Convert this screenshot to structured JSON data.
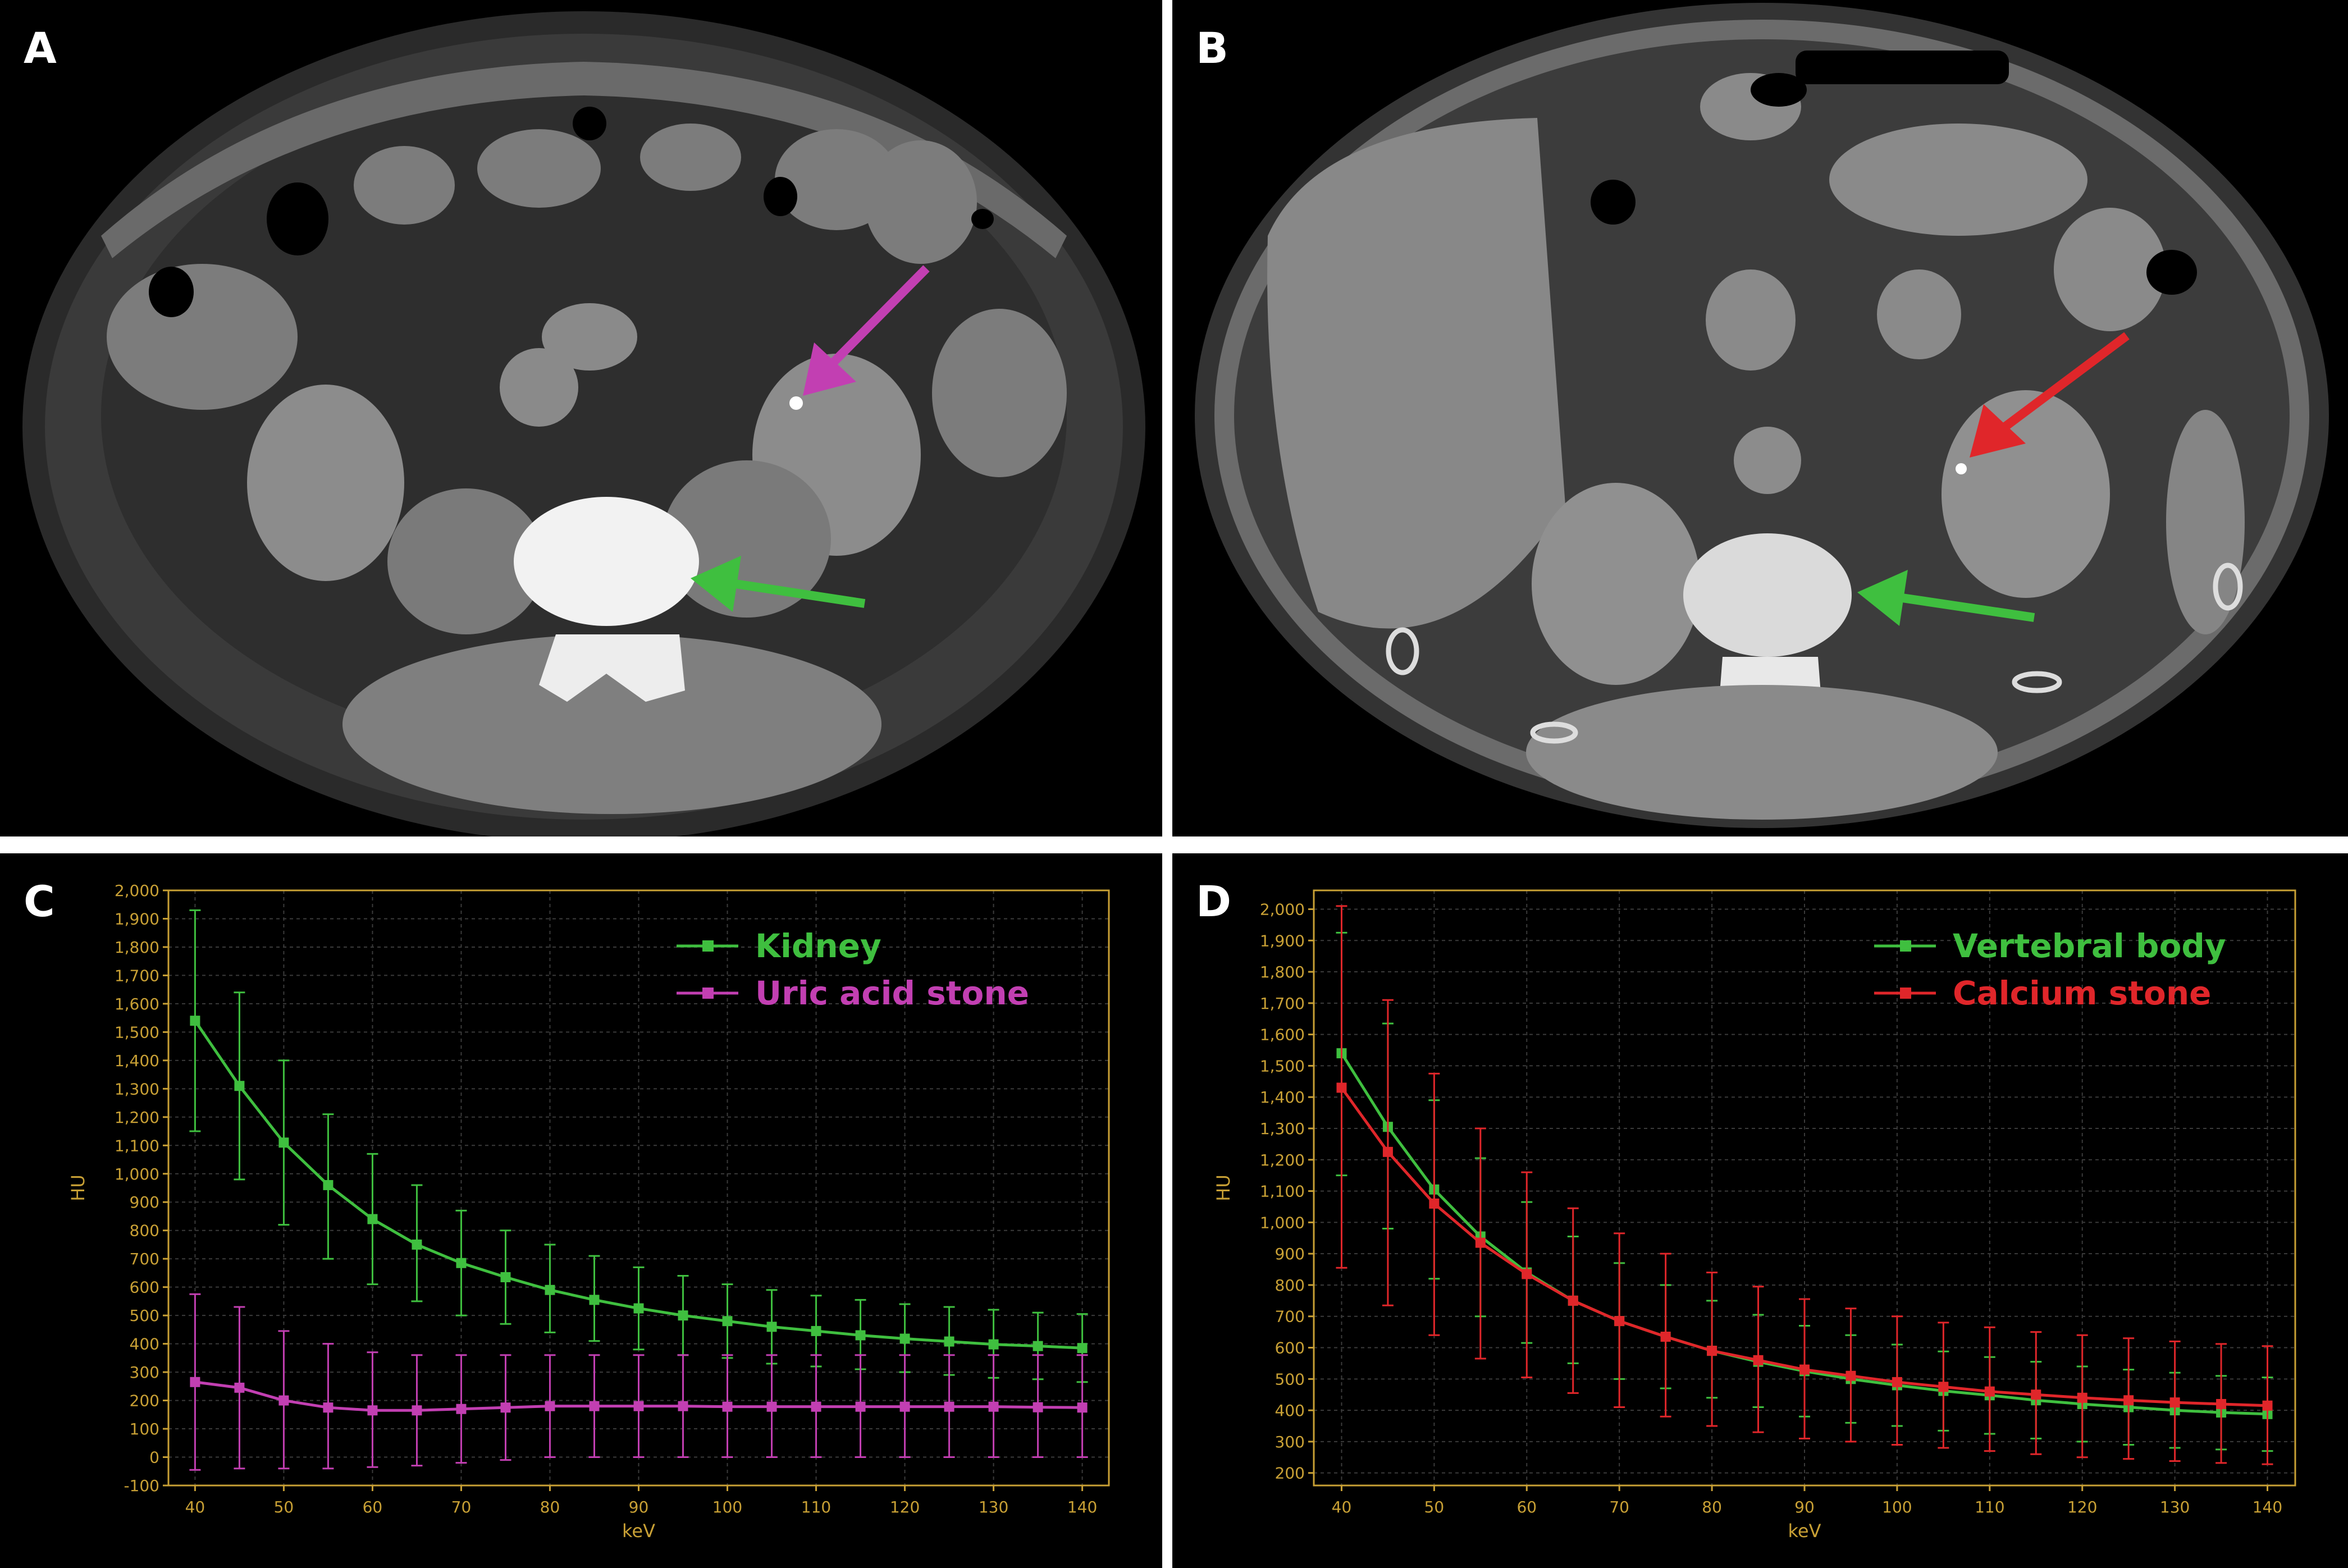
{
  "panels": {
    "a": {
      "letter": "A"
    },
    "b": {
      "letter": "B"
    },
    "c": {
      "letter": "C"
    },
    "d": {
      "letter": "D"
    }
  },
  "colors": {
    "green": "#3fbf3f",
    "magenta": "#c23fb2",
    "red": "#e0262a",
    "axis": "#c8a035",
    "grid": "#3b3b3b"
  },
  "chart_data": [
    {
      "panel": "C",
      "type": "line",
      "xlabel": "keV",
      "ylabel": "HU",
      "xlim": [
        37,
        143
      ],
      "ylim": [
        -100,
        2000
      ],
      "x_ticks": [
        40,
        50,
        60,
        70,
        80,
        90,
        100,
        110,
        120,
        130,
        140
      ],
      "y_ticks": [
        -100,
        0,
        100,
        200,
        300,
        400,
        500,
        600,
        700,
        800,
        900,
        1000,
        1100,
        1200,
        1300,
        1400,
        1500,
        1600,
        1700,
        1800,
        1900,
        2000
      ],
      "y_tick_labels": [
        "-100",
        "0",
        "100",
        "200",
        "300",
        "400",
        "500",
        "600",
        "700",
        "800",
        "900",
        "1,000",
        "1,100",
        "1,200",
        "1,300",
        "1,400",
        "1,500",
        "1,600",
        "1,700",
        "1,800",
        "1,900",
        "2,000"
      ],
      "grid": true,
      "legend_position": "top-right",
      "x": [
        40,
        45,
        50,
        55,
        60,
        65,
        70,
        75,
        80,
        85,
        90,
        95,
        100,
        105,
        110,
        115,
        120,
        125,
        130,
        135,
        140
      ],
      "series": [
        {
          "name": "Kidney",
          "color": "#3fbf3f",
          "values": [
            1540,
            1310,
            1110,
            960,
            840,
            750,
            685,
            635,
            590,
            555,
            525,
            500,
            480,
            460,
            445,
            430,
            418,
            408,
            398,
            392,
            385
          ],
          "err_upper": [
            1930,
            1640,
            1400,
            1210,
            1070,
            960,
            870,
            800,
            750,
            710,
            670,
            640,
            610,
            590,
            570,
            555,
            540,
            530,
            520,
            510,
            505
          ],
          "err_lower": [
            1150,
            980,
            820,
            700,
            610,
            550,
            500,
            470,
            440,
            410,
            380,
            360,
            350,
            330,
            320,
            310,
            300,
            290,
            280,
            275,
            265
          ]
        },
        {
          "name": "Uric acid stone",
          "color": "#c23fb2",
          "values": [
            265,
            245,
            200,
            175,
            165,
            165,
            170,
            175,
            180,
            180,
            180,
            180,
            178,
            178,
            178,
            178,
            178,
            178,
            178,
            176,
            175
          ],
          "err_upper": [
            575,
            530,
            445,
            400,
            370,
            360,
            360,
            360,
            360,
            360,
            360,
            360,
            360,
            360,
            360,
            360,
            360,
            360,
            360,
            360,
            360
          ],
          "err_lower": [
            -45,
            -40,
            -40,
            -40,
            -35,
            -30,
            -20,
            -10,
            0,
            0,
            0,
            0,
            0,
            0,
            0,
            0,
            0,
            0,
            0,
            0,
            0
          ]
        }
      ]
    },
    {
      "panel": "D",
      "type": "line",
      "xlabel": "keV",
      "ylabel": "HU",
      "xlim": [
        37,
        143
      ],
      "ylim": [
        160,
        2060
      ],
      "x_ticks": [
        40,
        50,
        60,
        70,
        80,
        90,
        100,
        110,
        120,
        130,
        140
      ],
      "y_ticks": [
        200,
        300,
        400,
        500,
        600,
        700,
        800,
        900,
        1000,
        1100,
        1200,
        1300,
        1400,
        1500,
        1600,
        1700,
        1800,
        1900,
        2000
      ],
      "y_tick_labels": [
        "200",
        "300",
        "400",
        "500",
        "600",
        "700",
        "800",
        "900",
        "1,000",
        "1,100",
        "1,200",
        "1,300",
        "1,400",
        "1,500",
        "1,600",
        "1,700",
        "1,800",
        "1,900",
        "2,000"
      ],
      "grid": true,
      "legend_position": "top-right",
      "x": [
        40,
        45,
        50,
        55,
        60,
        65,
        70,
        75,
        80,
        85,
        90,
        95,
        100,
        105,
        110,
        115,
        120,
        125,
        130,
        135,
        140
      ],
      "series": [
        {
          "name": "Vertebral body",
          "color": "#3fbf3f",
          "values": [
            1540,
            1305,
            1105,
            955,
            840,
            750,
            685,
            635,
            590,
            555,
            525,
            500,
            480,
            462,
            448,
            432,
            420,
            410,
            400,
            393,
            388
          ],
          "err_upper": [
            1925,
            1635,
            1390,
            1205,
            1065,
            955,
            870,
            800,
            750,
            705,
            670,
            640,
            610,
            588,
            570,
            555,
            540,
            530,
            520,
            510,
            505
          ],
          "err_lower": [
            1150,
            980,
            820,
            700,
            615,
            550,
            500,
            470,
            440,
            410,
            380,
            360,
            350,
            335,
            325,
            310,
            300,
            290,
            280,
            275,
            270
          ]
        },
        {
          "name": "Calcium stone",
          "color": "#e0262a",
          "values": [
            1430,
            1225,
            1060,
            935,
            835,
            750,
            685,
            635,
            590,
            560,
            530,
            510,
            490,
            475,
            460,
            450,
            440,
            432,
            425,
            420,
            415
          ],
          "err_upper": [
            2010,
            1710,
            1475,
            1300,
            1160,
            1045,
            965,
            900,
            840,
            795,
            755,
            725,
            700,
            680,
            665,
            650,
            640,
            630,
            620,
            612,
            605
          ],
          "err_lower": [
            855,
            735,
            640,
            565,
            505,
            455,
            410,
            380,
            350,
            330,
            310,
            300,
            290,
            280,
            270,
            260,
            250,
            245,
            238,
            232,
            228
          ]
        }
      ]
    }
  ]
}
